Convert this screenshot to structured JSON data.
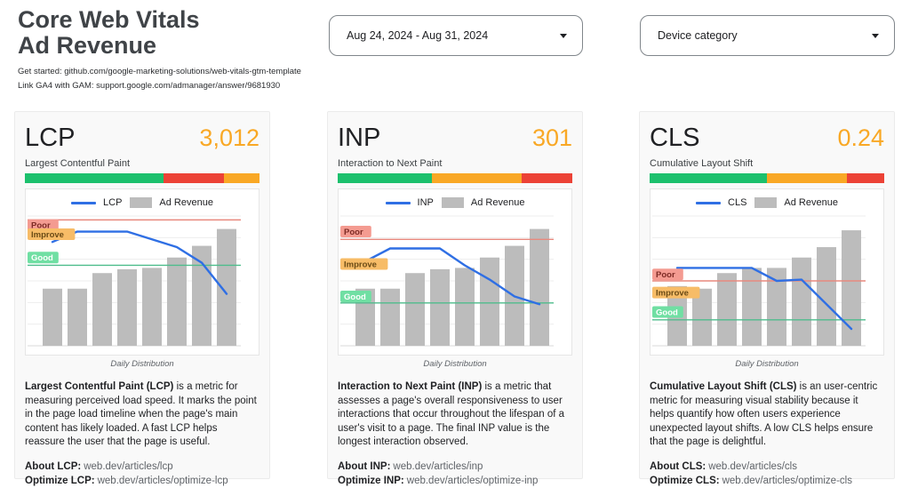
{
  "header": {
    "title_line1": "Core Web Vitals",
    "title_line2": "Ad Revenue",
    "caption_line1": "Get started: github.com/google-marketing-solutions/web-vitals-gtm-template",
    "caption_line2": "Link GA4 with GAM: support.google.com/admanager/answer/9681930"
  },
  "filters": {
    "date_range_value": "Aug 24, 2024 - Aug 31, 2024",
    "device_category_value": "Device category"
  },
  "colors": {
    "green": "#1cc06d",
    "orange": "#f9a825",
    "red": "#ec4236",
    "value_orange": "#f9a825",
    "line_blue": "#2f6fe4",
    "bar_gray": "#bcbcbc",
    "poor_line": "#e8897e",
    "good_line": "#4ebd8c",
    "tag_poor_bg": "#f49b91",
    "tag_poor_text": "#7d2b25",
    "tag_improve_bg": "#f7bc67",
    "tag_improve_text": "#6b4b16",
    "tag_good_bg": "#70dfa3",
    "tag_good_text": "#ffffff",
    "gridline": "#ededed",
    "axis": "#d9d9d9"
  },
  "cards": [
    {
      "id": "lcp",
      "metric": "LCP",
      "value": "3,012",
      "subtitle": "Largest Contentful Paint",
      "threshold_bar": [
        {
          "color_key": "green",
          "pct": 59
        },
        {
          "color_key": "red",
          "pct": 26
        },
        {
          "color_key": "orange",
          "pct": 15
        }
      ],
      "legend": {
        "line_label": "LCP",
        "bar_label": "Ad Revenue"
      },
      "chart_data": {
        "type": "bar+line",
        "points": 8,
        "bars": {
          "name": "Ad Revenue",
          "values_pct": [
            44,
            44,
            56,
            59,
            60,
            68,
            77,
            90
          ]
        },
        "line": {
          "name": "LCP",
          "values_pct": [
            80,
            88,
            88,
            88,
            82,
            76,
            64,
            40
          ]
        },
        "thresholds": {
          "poor_line_pct": 97,
          "good_line_pct": 62
        },
        "annotations": [
          {
            "label": "Poor",
            "y_pct": 93,
            "style": "poor"
          },
          {
            "label": "Improve",
            "y_pct": 86,
            "style": "improve"
          },
          {
            "label": "Good",
            "y_pct": 68,
            "style": "good"
          }
        ],
        "xlabel": "Daily Distribution",
        "axis": {
          "y_tick_labels": false,
          "x_tick_labels": false,
          "gridline_intervals": 6
        }
      },
      "description_bold": "Largest Contentful Paint (LCP)",
      "description_rest": " is a metric for measuring perceived load speed. It marks the point in the page load timeline when the page's main content has likely loaded. A fast LCP helps reassure the user that the page is useful.",
      "about_label": "About LCP:",
      "about_link": "web.dev/articles/lcp",
      "optimize_label": "Optimize LCP:",
      "optimize_link": "web.dev/articles/optimize-lcp"
    },
    {
      "id": "inp",
      "metric": "INP",
      "value": "301",
      "subtitle": "Interaction to Next Paint",
      "threshold_bar": [
        {
          "color_key": "green",
          "pct": 40
        },
        {
          "color_key": "orange",
          "pct": 38.5
        },
        {
          "color_key": "red",
          "pct": 21.5
        }
      ],
      "legend": {
        "line_label": "INP",
        "bar_label": "Ad Revenue"
      },
      "chart_data": {
        "type": "bar+line",
        "points": 8,
        "bars": {
          "name": "Ad Revenue",
          "values_pct": [
            44,
            44,
            56,
            59,
            60,
            68,
            77,
            90
          ]
        },
        "line": {
          "name": "INP",
          "values_pct": [
            65,
            75,
            75,
            75,
            62,
            51,
            38,
            32
          ]
        },
        "thresholds": {
          "poor_line_pct": 82,
          "good_line_pct": 33
        },
        "annotations": [
          {
            "label": "Poor",
            "y_pct": 88,
            "style": "poor"
          },
          {
            "label": "Improve",
            "y_pct": 63,
            "style": "improve"
          },
          {
            "label": "Good",
            "y_pct": 38,
            "style": "good"
          }
        ],
        "xlabel": "Daily Distribution",
        "axis": {
          "y_tick_labels": false,
          "x_tick_labels": false,
          "gridline_intervals": 6
        }
      },
      "description_bold": "Interaction to Next Paint (INP)",
      "description_rest": " is a metric that assesses a page's overall responsiveness to user interactions that occur throughout the lifespan of a user's visit to a page. The final INP value is the longest interaction observed.",
      "about_label": "About INP:",
      "about_link": "web.dev/articles/inp",
      "optimize_label": "Optimize INP:",
      "optimize_link": "web.dev/articles/optimize-inp"
    },
    {
      "id": "cls",
      "metric": "CLS",
      "value": "0.24",
      "subtitle": "Cumulative Layout Shift",
      "threshold_bar": [
        {
          "color_key": "green",
          "pct": 50
        },
        {
          "color_key": "orange",
          "pct": 34
        },
        {
          "color_key": "red",
          "pct": 16
        }
      ],
      "legend": {
        "line_label": "CLS",
        "bar_label": "Ad Revenue"
      },
      "chart_data": {
        "type": "bar+line",
        "points": 8,
        "bars": {
          "name": "Ad Revenue",
          "values_pct": [
            46,
            44,
            56,
            60,
            60,
            68,
            76,
            89
          ]
        },
        "line": {
          "name": "CLS",
          "values_pct": [
            60,
            60,
            60,
            60,
            50,
            51,
            32,
            13
          ]
        },
        "thresholds": {
          "poor_line_pct": 50,
          "good_line_pct": 20
        },
        "annotations": [
          {
            "label": "Poor",
            "y_pct": 55,
            "style": "poor"
          },
          {
            "label": "Improve",
            "y_pct": 41,
            "style": "improve"
          },
          {
            "label": "Good",
            "y_pct": 26,
            "style": "good"
          }
        ],
        "xlabel": "Daily Distribution",
        "axis": {
          "y_tick_labels": false,
          "x_tick_labels": false,
          "gridline_intervals": 6
        }
      },
      "description_bold": "Cumulative Layout Shift (CLS)",
      "description_rest": " is an user-centric metric for measuring visual stability because it helps quantify how often users experience unexpected layout shifts. A low CLS helps ensure that the page is delightful.",
      "about_label": "About CLS:",
      "about_link": "web.dev/articles/cls",
      "optimize_label": "Optimize CLS:",
      "optimize_link": "web.dev/articles/optimize-cls"
    }
  ]
}
